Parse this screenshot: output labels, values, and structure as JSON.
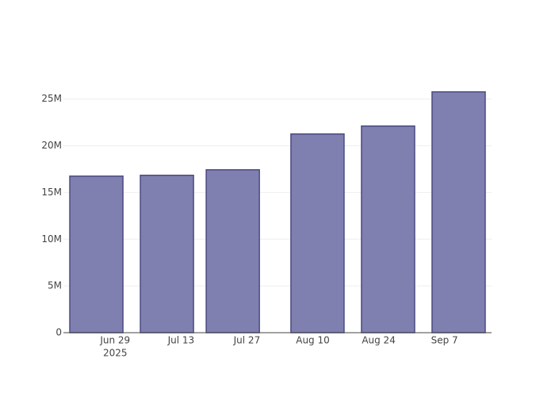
{
  "chart_data": {
    "type": "bar",
    "x": [
      "2025-06-25",
      "2025-07-10",
      "2025-07-24",
      "2025-08-11",
      "2025-08-26",
      "2025-09-10"
    ],
    "values": [
      16750000,
      16840000,
      17430000,
      21260000,
      22110000,
      25770000
    ],
    "color": "#7f7fb0",
    "edge_color": "#4b4b82",
    "xlim": [
      "2025-06-18",
      "2025-09-17"
    ],
    "xticks": [
      {
        "value": "2025-06-29",
        "label": "Jun 29"
      },
      {
        "value": "2025-07-13",
        "label": "Jul 13"
      },
      {
        "value": "2025-07-27",
        "label": "Jul 27"
      },
      {
        "value": "2025-08-10",
        "label": "Aug 10"
      },
      {
        "value": "2025-08-24",
        "label": "Aug 24"
      },
      {
        "value": "2025-09-07",
        "label": "Sep 7"
      }
    ],
    "x_year_label": "2025",
    "ylim": [
      0,
      27100000
    ],
    "yticks": [
      0,
      {
        "value": 5000000,
        "label": "5M"
      },
      {
        "value": 10000000,
        "label": "10M"
      },
      {
        "value": 15000000,
        "label": "15M"
      },
      {
        "value": 20000000,
        "label": "20M"
      },
      {
        "value": 25000000,
        "label": "25M"
      }
    ],
    "grid": true
  }
}
